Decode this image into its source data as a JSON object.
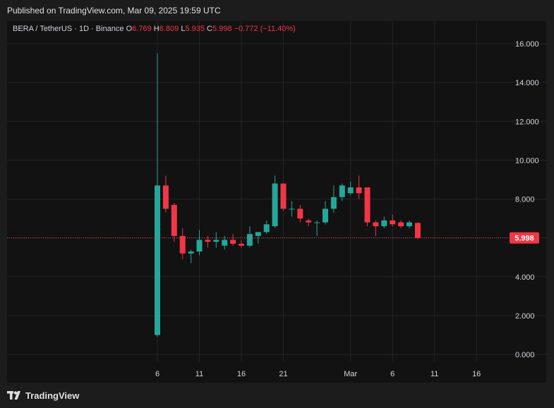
{
  "header": {
    "published": "Published on TradingView.com, Mar 09, 2025 19:59 UTC"
  },
  "legend": {
    "symbol": "BERA / TetherUS · 1D · Binance",
    "o_label": "O",
    "o_value": "6.769",
    "h_label": "H",
    "h_value": "6.809",
    "l_label": "L",
    "l_value": "5.935",
    "c_label": "C",
    "c_value": "5.998",
    "change": "−0.772 (−11.40%)"
  },
  "footer": {
    "brand": "TradingView"
  },
  "colors": {
    "up": "#26a69a",
    "down": "#f23645",
    "grid": "#242424",
    "text": "#d1d4dc",
    "bg": "#121212"
  },
  "chart_data": {
    "type": "candlestick",
    "y_ticks": [
      "16.000",
      "14.000",
      "12.000",
      "10.000",
      "8.000",
      "6.000",
      "4.000",
      "2.000",
      "0.000"
    ],
    "y_tick_values": [
      16,
      14,
      12,
      10,
      8,
      6,
      4,
      2,
      0
    ],
    "x_ticks": [
      "6",
      "11",
      "16",
      "21",
      "Mar",
      "6",
      "11",
      "16"
    ],
    "x_tick_dates": [
      "2025-02-06",
      "2025-02-11",
      "2025-02-16",
      "2025-02-21",
      "2025-03-01",
      "2025-03-06",
      "2025-03-11",
      "2025-03-16"
    ],
    "last_price": "5.998",
    "ylim": [
      0,
      16
    ],
    "candles": [
      {
        "date": "2025-02-06",
        "o": 1.0,
        "h": 15.5,
        "l": 0.9,
        "c": 8.7
      },
      {
        "date": "2025-02-07",
        "o": 8.7,
        "h": 9.2,
        "l": 7.3,
        "c": 7.5
      },
      {
        "date": "2025-02-08",
        "o": 7.7,
        "h": 7.8,
        "l": 5.8,
        "c": 6.1
      },
      {
        "date": "2025-02-09",
        "o": 6.1,
        "h": 6.5,
        "l": 4.9,
        "c": 5.2
      },
      {
        "date": "2025-02-10",
        "o": 5.2,
        "h": 5.4,
        "l": 4.7,
        "c": 5.3
      },
      {
        "date": "2025-02-11",
        "o": 5.3,
        "h": 6.4,
        "l": 5.1,
        "c": 5.9
      },
      {
        "date": "2025-02-12",
        "o": 5.9,
        "h": 6.1,
        "l": 5.5,
        "c": 5.8
      },
      {
        "date": "2025-02-13",
        "o": 5.8,
        "h": 6.3,
        "l": 5.5,
        "c": 5.9
      },
      {
        "date": "2025-02-14",
        "o": 5.6,
        "h": 6.1,
        "l": 5.4,
        "c": 5.9
      },
      {
        "date": "2025-02-15",
        "o": 5.9,
        "h": 6.2,
        "l": 5.6,
        "c": 5.7
      },
      {
        "date": "2025-02-16",
        "o": 5.7,
        "h": 5.9,
        "l": 5.5,
        "c": 5.6
      },
      {
        "date": "2025-02-17",
        "o": 5.6,
        "h": 6.6,
        "l": 5.5,
        "c": 6.2
      },
      {
        "date": "2025-02-18",
        "o": 6.1,
        "h": 6.3,
        "l": 5.7,
        "c": 6.3
      },
      {
        "date": "2025-02-19",
        "o": 6.3,
        "h": 6.9,
        "l": 6.2,
        "c": 6.7
      },
      {
        "date": "2025-02-20",
        "o": 6.6,
        "h": 9.2,
        "l": 6.5,
        "c": 8.8
      },
      {
        "date": "2025-02-21",
        "o": 8.8,
        "h": 8.8,
        "l": 7.4,
        "c": 7.5
      },
      {
        "date": "2025-02-22",
        "o": 7.5,
        "h": 7.9,
        "l": 7.1,
        "c": 7.5
      },
      {
        "date": "2025-02-23",
        "o": 7.5,
        "h": 7.7,
        "l": 6.8,
        "c": 7.0
      },
      {
        "date": "2025-02-24",
        "o": 6.9,
        "h": 7.0,
        "l": 6.6,
        "c": 6.8
      },
      {
        "date": "2025-02-25",
        "o": 6.8,
        "h": 6.9,
        "l": 6.1,
        "c": 6.8
      },
      {
        "date": "2025-02-26",
        "o": 6.8,
        "h": 7.9,
        "l": 6.7,
        "c": 7.5
      },
      {
        "date": "2025-02-27",
        "o": 7.5,
        "h": 8.7,
        "l": 7.3,
        "c": 8.1
      },
      {
        "date": "2025-02-28",
        "o": 8.1,
        "h": 8.8,
        "l": 7.9,
        "c": 8.7
      },
      {
        "date": "2025-03-01",
        "o": 8.3,
        "h": 8.9,
        "l": 8.2,
        "c": 8.6
      },
      {
        "date": "2025-03-02",
        "o": 8.6,
        "h": 9.2,
        "l": 8.0,
        "c": 8.3
      },
      {
        "date": "2025-03-03",
        "o": 8.6,
        "h": 8.6,
        "l": 6.6,
        "c": 6.8
      },
      {
        "date": "2025-03-04",
        "o": 6.8,
        "h": 6.9,
        "l": 6.1,
        "c": 6.6
      },
      {
        "date": "2025-03-05",
        "o": 6.6,
        "h": 7.1,
        "l": 6.5,
        "c": 6.9
      },
      {
        "date": "2025-03-06",
        "o": 6.9,
        "h": 7.2,
        "l": 6.6,
        "c": 6.7
      },
      {
        "date": "2025-03-07",
        "o": 6.8,
        "h": 6.9,
        "l": 6.5,
        "c": 6.6
      },
      {
        "date": "2025-03-08",
        "o": 6.6,
        "h": 6.9,
        "l": 6.5,
        "c": 6.8
      },
      {
        "date": "2025-03-09",
        "o": 6.77,
        "h": 6.81,
        "l": 5.94,
        "c": 6.0
      }
    ]
  }
}
